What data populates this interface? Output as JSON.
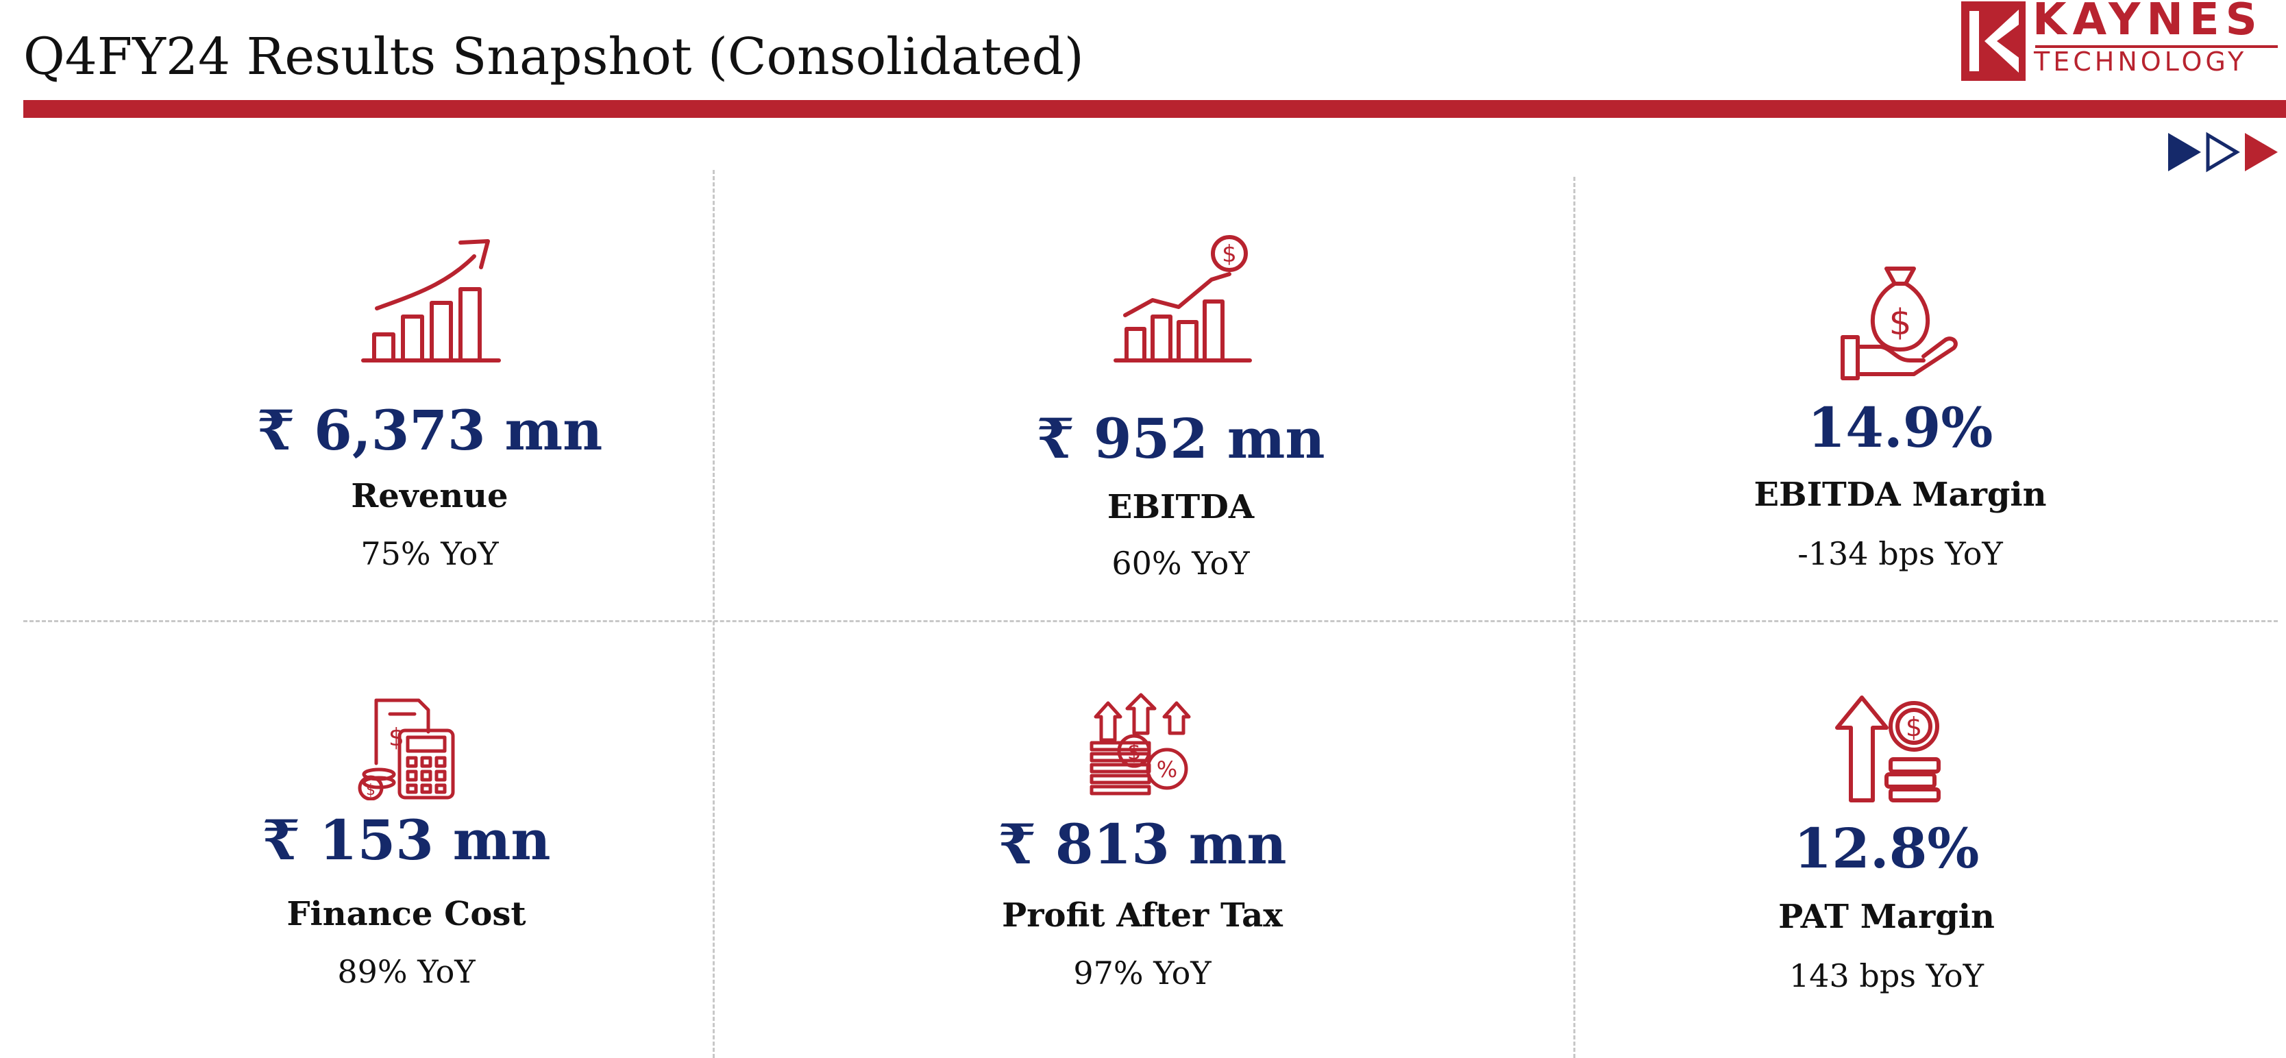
{
  "header": {
    "title": "Q4FY24 Results Snapshot (Consolidated)",
    "brand": {
      "name": "KAYNES",
      "tagline": "TECHNOLOGY",
      "color": "#b8232f"
    }
  },
  "colors": {
    "accent": "#b8232f",
    "value_text": "#15296a",
    "nav_dark": "#15296a"
  },
  "nav": {
    "icons": [
      "play-filled-navy-icon",
      "play-outline-navy-icon",
      "play-filled-red-icon"
    ]
  },
  "metrics": [
    {
      "icon": "growth-chart-arrow-icon",
      "value": "₹ 6,373 mn",
      "label": "Revenue",
      "change": "75% YoY"
    },
    {
      "icon": "chart-dollar-icon",
      "value": "₹ 952 mn",
      "label": "EBITDA",
      "change": "60% YoY"
    },
    {
      "icon": "money-bag-hand-icon",
      "value": "14.9%",
      "label": "EBITDA Margin",
      "change": "-134 bps YoY"
    },
    {
      "icon": "calculator-invoice-icon",
      "value": "₹ 153 mn",
      "label": "Finance Cost",
      "change": "89% YoY"
    },
    {
      "icon": "profit-arrows-coins-icon",
      "value": "₹ 813 mn",
      "label": "Profit After Tax",
      "change": "97% YoY"
    },
    {
      "icon": "arrow-up-coins-icon",
      "value": "12.8%",
      "label": "PAT Margin",
      "change": "143 bps YoY"
    }
  ]
}
